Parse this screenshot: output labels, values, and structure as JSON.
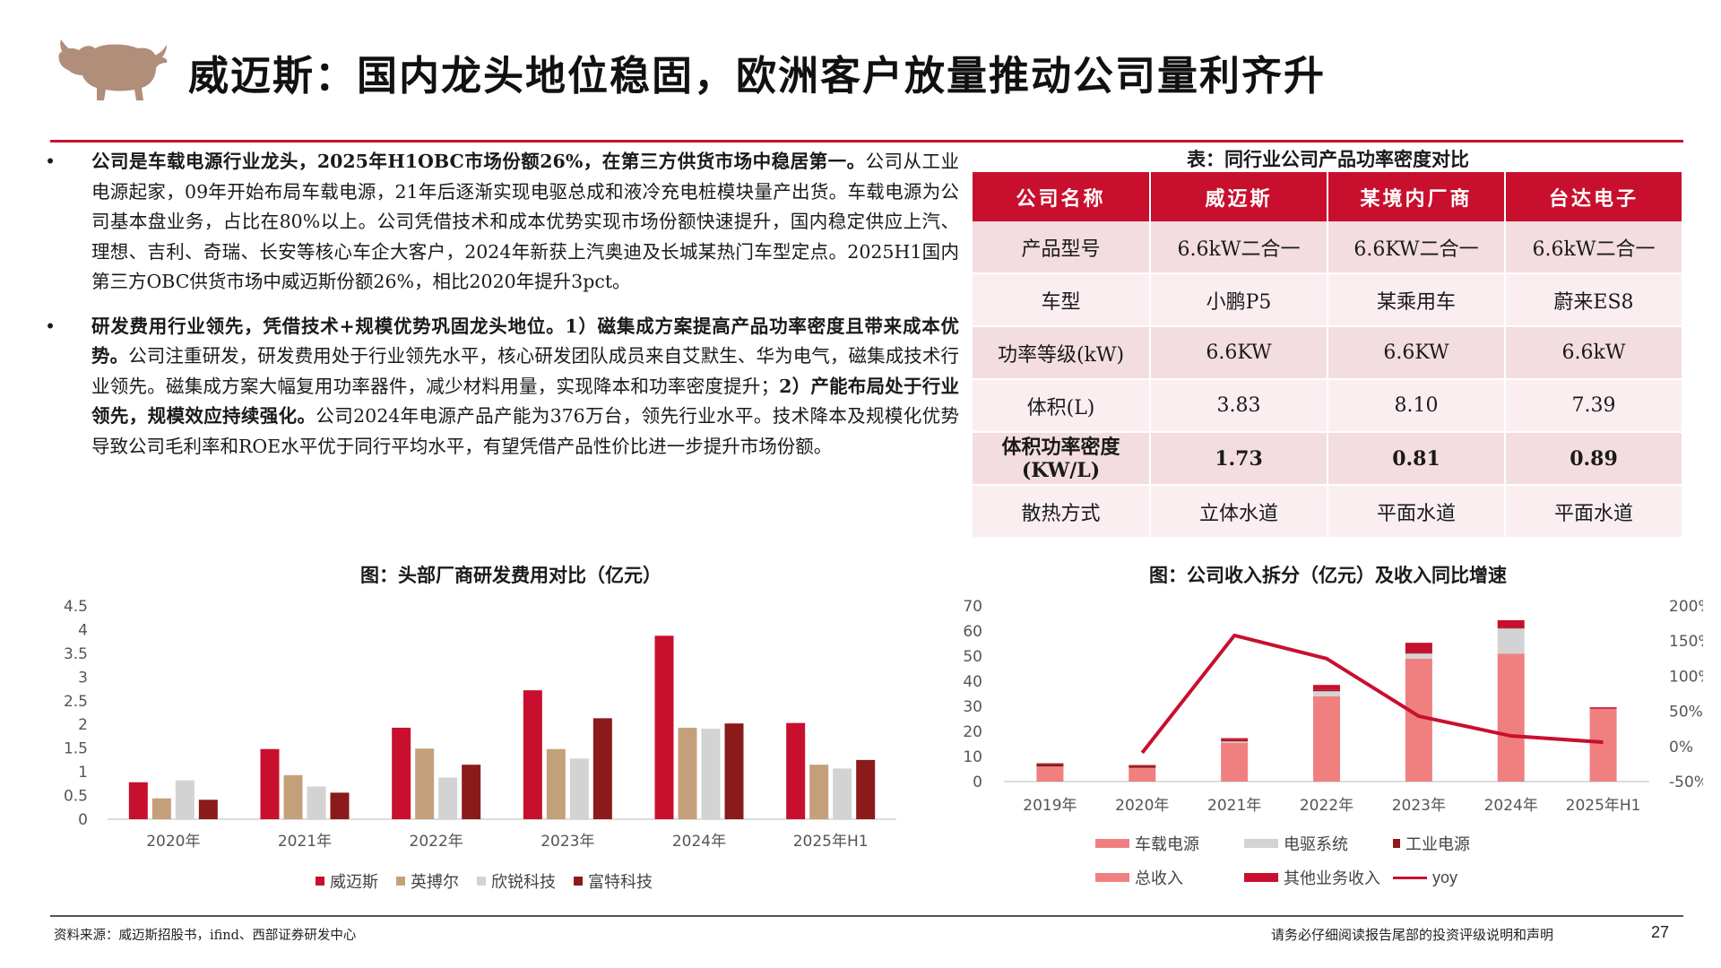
{
  "title": "威迈斯：国内龙头地位稳固，欧洲客户放量推动公司量利齐升",
  "bullets": [
    {
      "dot": "•",
      "parts": [
        {
          "bold": true,
          "text": "公司是车载电源行业龙头，2025年H1OBC市场份额26%，在第三方供货市场中稳居第一。"
        },
        {
          "bold": false,
          "text": "公司从工业电源起家，09年开始布局车载电源，21年后逐渐实现电驱总成和液冷充电桩模块量产出货。车载电源为公司基本盘业务，占比在80%以上。公司凭借技术和成本优势实现市场份额快速提升，国内稳定供应上汽、理想、吉利、奇瑞、长安等核心车企大客户，2024年新获上汽奥迪及长城某热门车型定点。2025H1国内第三方OBC供货市场中威迈斯份额26%，相比2020年提升3pct。"
        }
      ]
    },
    {
      "dot": "•",
      "parts": [
        {
          "bold": true,
          "text": "研发费用行业领先，凭借技术+规模优势巩固龙头地位。1）磁集成方案提高产品功率密度且带来成本优势。"
        },
        {
          "bold": false,
          "text": "公司注重研发，研发费用处于行业领先水平，核心研发团队成员来自艾默生、华为电气，磁集成技术行业领先。磁集成方案大幅复用功率器件，减少材料用量，实现降本和功率密度提升；"
        },
        {
          "bold": true,
          "text": "2）产能布局处于行业领先，规模效应持续强化。"
        },
        {
          "bold": false,
          "text": "公司2024年电源产品产能为376万台，领先行业水平。技术降本及规模化优势导致公司毛利率和ROE水平优于同行平均水平，有望凭借产品性价比进一步提升市场份额。"
        }
      ]
    }
  ],
  "table": {
    "title": "表：同行业公司产品功率密度对比",
    "headers": [
      "公司名称",
      "威迈斯",
      "某境内厂商",
      "台达电子"
    ],
    "rows": [
      {
        "cells": [
          "产品型号",
          "6.6kW二合一",
          "6.6KW二合一",
          "6.6kW二合一"
        ],
        "bold": false
      },
      {
        "cells": [
          "车型",
          "小鹏P5",
          "某乘用车",
          "蔚来ES8"
        ],
        "bold": false
      },
      {
        "cells": [
          "功率等级(kW)",
          "6.6KW",
          "6.6KW",
          "6.6kW"
        ],
        "bold": false
      },
      {
        "cells": [
          "体积(L)",
          "3.83",
          "8.10",
          "7.39"
        ],
        "bold": false
      },
      {
        "cells": [
          "体积功率密度\n(KW/L)",
          "1.73",
          "0.81",
          "0.89"
        ],
        "bold": true
      },
      {
        "cells": [
          "散热方式",
          "立体水道",
          "平面水道",
          "平面水道"
        ],
        "bold": false
      }
    ]
  },
  "chart_data": [
    {
      "type": "bar",
      "title": "图：头部厂商研发费用对比（亿元）",
      "categories": [
        "2020年",
        "2021年",
        "2022年",
        "2023年",
        "2024年",
        "2025年H1"
      ],
      "ylim": [
        0,
        4.5
      ],
      "yticks": [
        "0",
        "0.5",
        "1",
        "1.5",
        "2",
        "2.5",
        "3",
        "3.5",
        "4",
        "4.5"
      ],
      "series": [
        {
          "name": "威迈斯",
          "color": "#c8102e",
          "values": [
            0.78,
            1.48,
            1.93,
            2.72,
            3.87,
            2.03
          ]
        },
        {
          "name": "英搏尔",
          "color": "#c4a07a",
          "values": [
            0.44,
            0.93,
            1.49,
            1.48,
            1.93,
            1.15
          ]
        },
        {
          "name": "欣锐科技",
          "color": "#d3d3d3",
          "values": [
            0.82,
            0.69,
            0.88,
            1.28,
            1.91,
            1.07
          ]
        },
        {
          "name": "富特科技",
          "color": "#8b1a1a",
          "values": [
            0.41,
            0.56,
            1.15,
            2.13,
            2.02,
            1.25
          ]
        }
      ],
      "grid": false,
      "legend": "bottom"
    },
    {
      "type": "bar",
      "title": "图：公司收入拆分（亿元）及收入同比增速",
      "categories": [
        "2019年",
        "2020年",
        "2021年",
        "2022年",
        "2023年",
        "2024年",
        "2025年H1"
      ],
      "ylim": [
        0,
        70
      ],
      "yticks": [
        "0",
        "10",
        "20",
        "30",
        "40",
        "50",
        "60",
        "70"
      ],
      "y2lim": [
        -50,
        200
      ],
      "y2ticks": [
        "-50%",
        "0%",
        "50%",
        "100%",
        "150%",
        "200%"
      ],
      "stacked": true,
      "series": [
        {
          "name": "车载电源",
          "color": "#f08080",
          "values": [
            6.0,
            5.5,
            15.5,
            34.0,
            49.0,
            51.0,
            29.0
          ]
        },
        {
          "name": "电驱系统",
          "color": "#d3d3d3",
          "values": [
            0.0,
            0.0,
            0.5,
            2.0,
            2.0,
            10.0,
            0.0
          ]
        },
        {
          "name": "工业电源",
          "color": "#8b1a1a",
          "values": [
            1.0,
            0.8,
            0.5,
            0.5,
            0.3,
            0.3,
            0.0
          ]
        },
        {
          "name": "总收入",
          "color": "#f08080",
          "values": [
            null,
            null,
            null,
            null,
            null,
            null,
            null
          ]
        },
        {
          "name": "其他业务收入",
          "color": "#c8102e",
          "values": [
            0.3,
            0.3,
            0.8,
            2.0,
            4.0,
            3.0,
            0.6
          ]
        }
      ],
      "line": {
        "name": "yoy",
        "color": "#c8102e",
        "axis": "right",
        "values": [
          null,
          -9,
          158,
          125,
          43,
          15,
          6
        ]
      },
      "grid": false,
      "legend": "bottom"
    }
  ],
  "footer": {
    "source": "资料来源：威迈斯招股书，ifind、西部证券研发中心",
    "disclaimer": "请务必仔细阅读报告尾部的投资评级说明和声明",
    "page": "27"
  }
}
